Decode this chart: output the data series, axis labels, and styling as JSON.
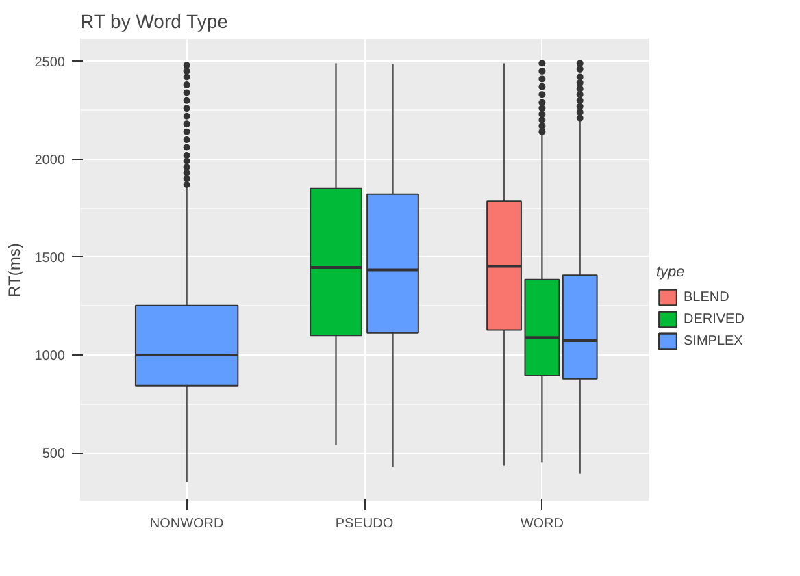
{
  "chart_data": {
    "type": "box",
    "title": "RT by Word Type",
    "ylabel": "RT(ms)",
    "legend_title": "type",
    "categories": [
      "NONWORD",
      "PSEUDO",
      "WORD"
    ],
    "ylim": [
      252,
      2614
    ],
    "yticks": [
      500,
      1000,
      1500,
      2000,
      2500
    ],
    "grid": true,
    "legend": "right",
    "series": [
      {
        "name": "BLEND",
        "color": "#f8766d",
        "boxes": [
          null,
          null,
          {
            "low": 435,
            "q1": 1127,
            "median": 1452,
            "q3": 1785,
            "high": 2490
          }
        ]
      },
      {
        "name": "DERIVED",
        "color": "#00ba38",
        "boxes": [
          null,
          {
            "low": 540,
            "q1": 1100,
            "median": 1447,
            "q3": 1850,
            "high": 2490
          },
          {
            "low": 450,
            "q1": 895,
            "median": 1090,
            "q3": 1385,
            "high": 2130,
            "outliers": [
              2140,
              2170,
              2200,
              2230,
              2260,
              2290,
              2330,
              2370,
              2410,
              2450,
              2490
            ]
          }
        ]
      },
      {
        "name": "SIMPLEX",
        "color": "#619cff",
        "boxes": [
          {
            "low": 352,
            "q1": 843,
            "median": 1000,
            "q3": 1252,
            "high": 1865,
            "outliers": [
              1870,
              1900,
              1930,
              1960,
              1990,
              2020,
              2060,
              2100,
              2140,
              2180,
              2220,
              2260,
              2300,
              2340,
              2380,
              2420,
              2450,
              2480
            ]
          },
          {
            "low": 430,
            "q1": 1112,
            "median": 1435,
            "q3": 1822,
            "high": 2485
          },
          {
            "low": 393,
            "q1": 878,
            "median": 1073,
            "q3": 1408,
            "high": 2200,
            "outliers": [
              2210,
              2240,
              2270,
              2300,
              2330,
              2360,
              2390,
              2420,
              2460,
              2490
            ]
          }
        ]
      }
    ]
  }
}
